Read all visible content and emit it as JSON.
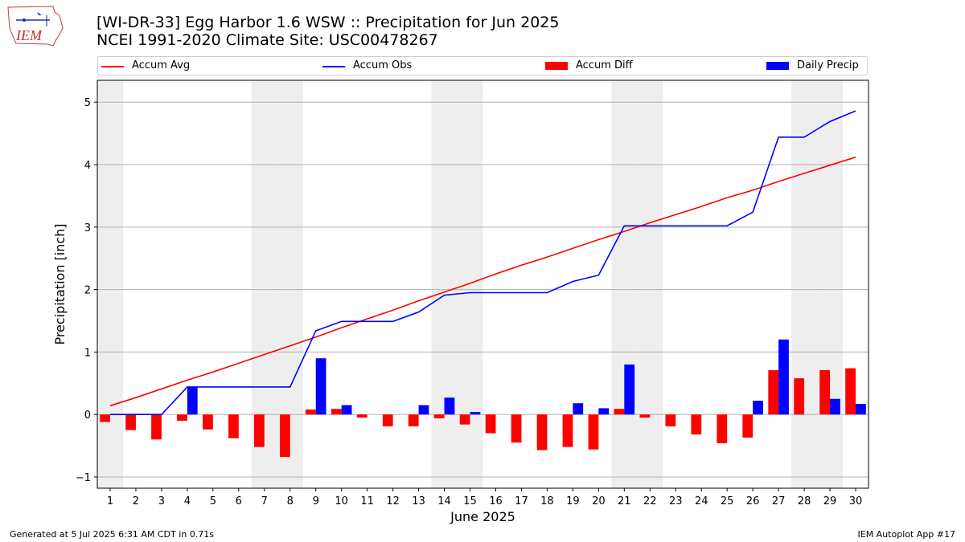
{
  "header": {
    "logo_text": "IEM",
    "title_line1": "[WI-DR-33] Egg Harbor 1.6 WSW :: Precipitation for Jun 2025",
    "title_line2": "NCEI 1991-2020 Climate Site: USC00478267"
  },
  "legend": {
    "items": [
      {
        "label": "Accum Avg",
        "kind": "line",
        "color": "#ff0000"
      },
      {
        "label": "Accum Obs",
        "kind": "line",
        "color": "#0000ff"
      },
      {
        "label": "Accum Diff",
        "kind": "patch",
        "color": "#ff0000"
      },
      {
        "label": "Daily Precip",
        "kind": "patch",
        "color": "#0000ff"
      }
    ]
  },
  "footer": {
    "left": "Generated at 5 Jul 2025 6:31 AM CDT in 0.71s",
    "right": "IEM Autoplot App #17"
  },
  "chart_data": {
    "type": "bar",
    "xlabel": "June 2025",
    "ylabel": "Precipitation [inch]",
    "xlim": [
      0.5,
      30.5
    ],
    "ylim": [
      -1.18,
      5.35
    ],
    "yticks": [
      -1,
      0,
      1,
      2,
      3,
      4,
      5
    ],
    "days": [
      1,
      2,
      3,
      4,
      5,
      6,
      7,
      8,
      9,
      10,
      11,
      12,
      13,
      14,
      15,
      16,
      17,
      18,
      19,
      20,
      21,
      22,
      23,
      24,
      25,
      26,
      27,
      28,
      29,
      30
    ],
    "weekend_days": [
      1,
      7,
      8,
      14,
      15,
      21,
      22,
      28,
      29
    ],
    "grid": "horizontal",
    "series": [
      {
        "name": "Accum Avg",
        "type": "line",
        "color": "#ff0000",
        "values": [
          0.14,
          0.27,
          0.41,
          0.55,
          0.68,
          0.82,
          0.96,
          1.1,
          1.24,
          1.39,
          1.53,
          1.67,
          1.82,
          1.96,
          2.1,
          2.25,
          2.39,
          2.52,
          2.66,
          2.8,
          2.93,
          3.07,
          3.2,
          3.33,
          3.47,
          3.59,
          3.73,
          3.86,
          3.99,
          4.12
        ]
      },
      {
        "name": "Accum Obs",
        "type": "line",
        "color": "#0000ff",
        "values": [
          0.0,
          0.0,
          0.0,
          0.44,
          0.44,
          0.44,
          0.44,
          0.44,
          1.34,
          1.49,
          1.49,
          1.49,
          1.64,
          1.91,
          1.95,
          1.95,
          1.95,
          1.95,
          2.13,
          2.23,
          3.02,
          3.02,
          3.02,
          3.02,
          3.02,
          3.24,
          4.44,
          4.44,
          4.69,
          4.86
        ]
      },
      {
        "name": "Accum Diff",
        "type": "bar",
        "color": "#ff0000",
        "values": [
          -0.12,
          -0.25,
          -0.4,
          -0.1,
          -0.24,
          -0.38,
          -0.52,
          -0.68,
          0.08,
          0.09,
          -0.05,
          -0.19,
          -0.19,
          -0.06,
          -0.16,
          -0.3,
          -0.45,
          -0.57,
          -0.52,
          -0.56,
          0.09,
          -0.05,
          -0.19,
          -0.32,
          -0.46,
          -0.37,
          0.71,
          0.58,
          0.71,
          0.74
        ]
      },
      {
        "name": "Daily Precip",
        "type": "bar",
        "color": "#0000ff",
        "values": [
          0.0,
          0.0,
          0.0,
          0.44,
          0.0,
          0.0,
          0.0,
          0.0,
          0.9,
          0.15,
          0.0,
          0.0,
          0.15,
          0.27,
          0.04,
          0.0,
          0.0,
          0.0,
          0.18,
          0.1,
          0.8,
          0.0,
          0.0,
          0.0,
          0.0,
          0.22,
          1.2,
          0.0,
          0.25,
          0.17
        ]
      }
    ]
  }
}
